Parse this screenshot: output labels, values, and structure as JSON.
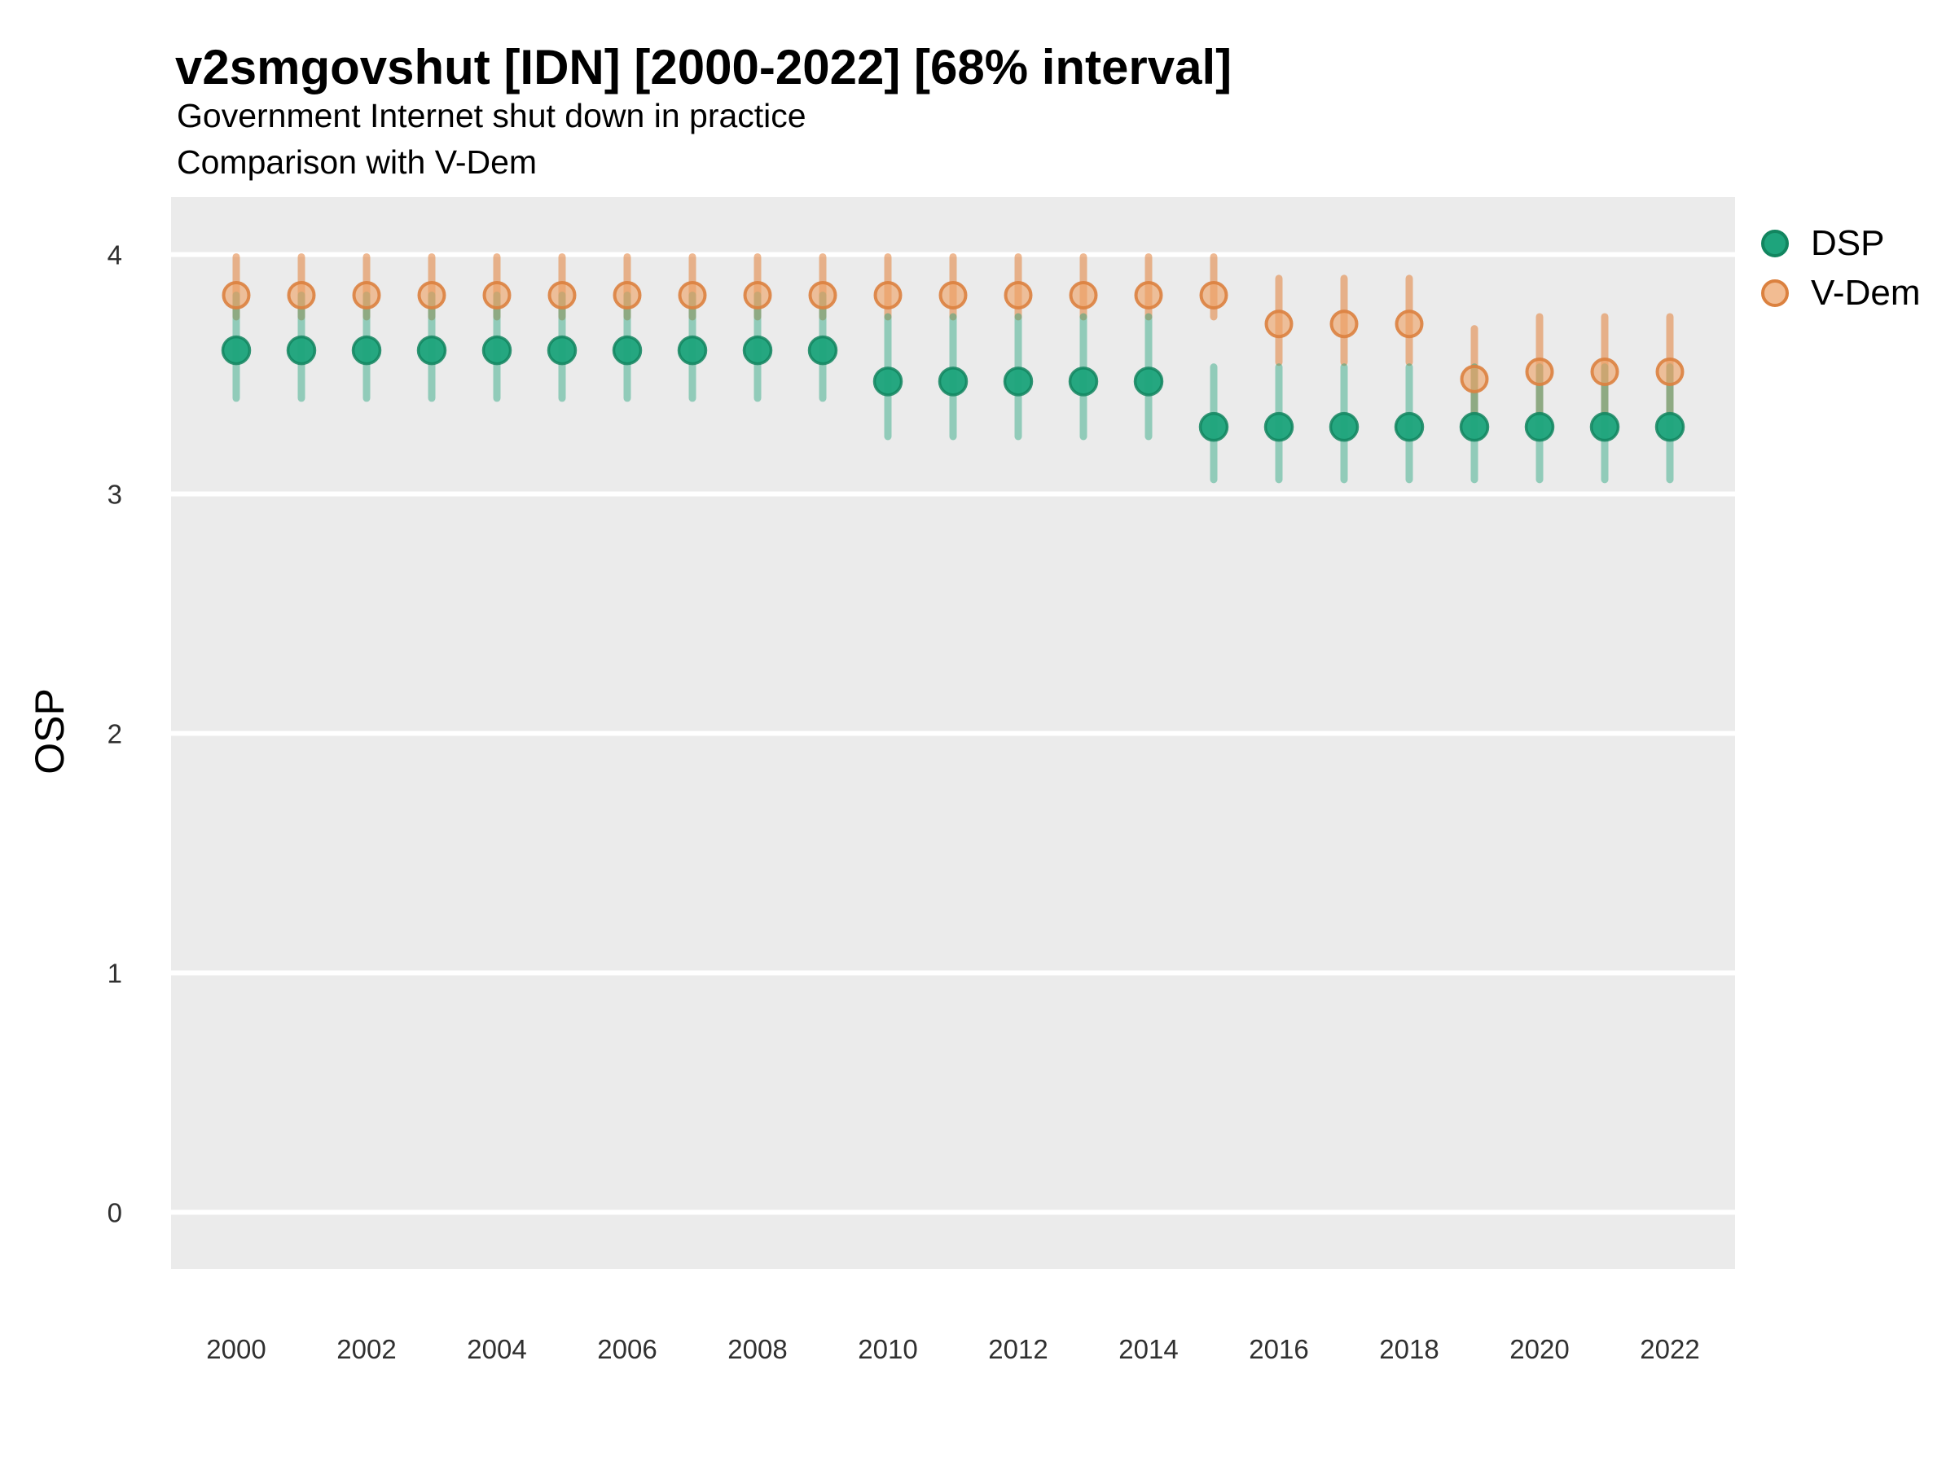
{
  "chart_data": {
    "type": "pointrange",
    "title": "v2smgovshut [IDN] [2000-2022] [68% interval]",
    "subtitle": [
      "Government Internet shut down in practice",
      "Comparison with V-Dem"
    ],
    "ylabel": "OSP",
    "xlabel": "",
    "interval_label": "68% interval",
    "country": "IDN",
    "variable": "v2smgovshut",
    "ylim": [
      -0.23,
      4.25
    ],
    "xlim": [
      1999,
      2023
    ],
    "yticks": [
      0,
      1,
      2,
      3,
      4
    ],
    "xticks": [
      2000,
      2002,
      2004,
      2006,
      2008,
      2010,
      2012,
      2014,
      2016,
      2018,
      2020,
      2022
    ],
    "grid": "horizontal-major-only, white on gray panel",
    "legend_position": "right",
    "point_columns": [
      "year",
      "estimate",
      "lower68",
      "upper68"
    ],
    "series": [
      {
        "name": "DSP",
        "points": [
          [
            2000,
            3.6,
            3.4,
            3.83
          ],
          [
            2001,
            3.6,
            3.4,
            3.83
          ],
          [
            2002,
            3.6,
            3.4,
            3.83
          ],
          [
            2003,
            3.6,
            3.4,
            3.83
          ],
          [
            2004,
            3.6,
            3.4,
            3.83
          ],
          [
            2005,
            3.6,
            3.4,
            3.83
          ],
          [
            2006,
            3.6,
            3.4,
            3.83
          ],
          [
            2007,
            3.6,
            3.4,
            3.83
          ],
          [
            2008,
            3.6,
            3.4,
            3.83
          ],
          [
            2009,
            3.6,
            3.4,
            3.83
          ],
          [
            2010,
            3.47,
            3.24,
            3.74
          ],
          [
            2011,
            3.47,
            3.24,
            3.74
          ],
          [
            2012,
            3.47,
            3.24,
            3.74
          ],
          [
            2013,
            3.47,
            3.24,
            3.74
          ],
          [
            2014,
            3.47,
            3.24,
            3.74
          ],
          [
            2015,
            3.28,
            3.06,
            3.53
          ],
          [
            2016,
            3.28,
            3.06,
            3.53
          ],
          [
            2017,
            3.28,
            3.06,
            3.53
          ],
          [
            2018,
            3.28,
            3.06,
            3.53
          ],
          [
            2019,
            3.28,
            3.06,
            3.53
          ],
          [
            2020,
            3.28,
            3.06,
            3.53
          ],
          [
            2021,
            3.28,
            3.06,
            3.53
          ],
          [
            2022,
            3.28,
            3.06,
            3.53
          ]
        ]
      },
      {
        "name": "V-Dem",
        "points": [
          [
            2000,
            3.83,
            3.74,
            3.99
          ],
          [
            2001,
            3.83,
            3.74,
            3.99
          ],
          [
            2002,
            3.83,
            3.74,
            3.99
          ],
          [
            2003,
            3.83,
            3.74,
            3.99
          ],
          [
            2004,
            3.83,
            3.74,
            3.99
          ],
          [
            2005,
            3.83,
            3.74,
            3.99
          ],
          [
            2006,
            3.83,
            3.74,
            3.99
          ],
          [
            2007,
            3.83,
            3.74,
            3.99
          ],
          [
            2008,
            3.83,
            3.74,
            3.99
          ],
          [
            2009,
            3.83,
            3.74,
            3.99
          ],
          [
            2010,
            3.83,
            3.74,
            3.99
          ],
          [
            2011,
            3.83,
            3.74,
            3.99
          ],
          [
            2012,
            3.83,
            3.74,
            3.99
          ],
          [
            2013,
            3.83,
            3.74,
            3.99
          ],
          [
            2014,
            3.83,
            3.74,
            3.99
          ],
          [
            2015,
            3.83,
            3.74,
            3.99
          ],
          [
            2016,
            3.71,
            3.55,
            3.9
          ],
          [
            2017,
            3.71,
            3.55,
            3.9
          ],
          [
            2018,
            3.71,
            3.55,
            3.9
          ],
          [
            2019,
            3.48,
            3.33,
            3.69
          ],
          [
            2020,
            3.51,
            3.34,
            3.74
          ],
          [
            2021,
            3.51,
            3.34,
            3.74
          ],
          [
            2022,
            3.51,
            3.34,
            3.74
          ]
        ]
      }
    ],
    "colors": {
      "dsp_point": "#1EA47C",
      "dsp_point_stroke": "#12855F",
      "dsp_bar": "rgba(35,164,124,0.45)",
      "vdem_point_fill": "#EFA368",
      "vdem_point_stroke": "#DB813F",
      "vdem_bar": "rgba(225,127,56,0.55)",
      "vdem_legend_fill": "#F2BC92",
      "panel_background": "#EBEBEB",
      "gridline": "#FFFFFF",
      "tick_text": "#303030",
      "text": "#000000"
    }
  }
}
